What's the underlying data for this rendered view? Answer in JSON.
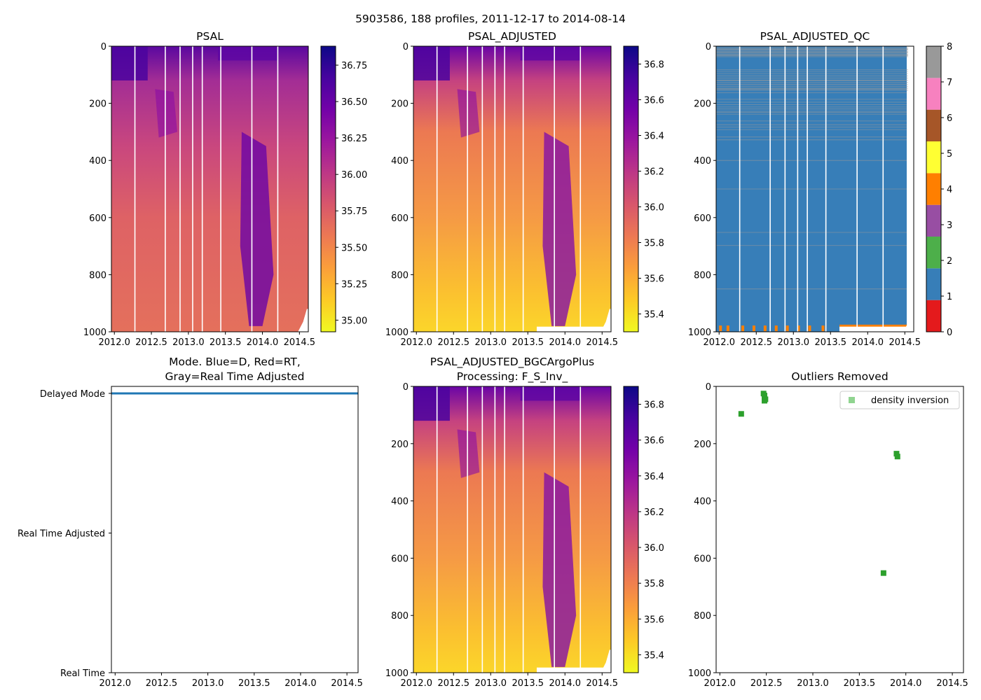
{
  "figure": {
    "suptitle": "5903586, 188 profiles, 2011-12-17 to 2014-08-14"
  },
  "colors": {
    "plasma": [
      "#0d0887",
      "#47039f",
      "#7301a8",
      "#9c179e",
      "#bd3786",
      "#d8576b",
      "#ed7953",
      "#fb9f3a",
      "#fdca26",
      "#f0f921"
    ],
    "qc": [
      "#e41a1c",
      "#377eb8",
      "#4daf4a",
      "#984ea3",
      "#ff7f00",
      "#ffff33",
      "#a65628",
      "#f781bf",
      "#999999"
    ],
    "mode_line": "#1f77b4",
    "outlier_marker": "#2ca02c",
    "outlier_legend": "#90d490"
  },
  "chart_data": [
    {
      "id": "psal",
      "type": "heatmap",
      "title": "PSAL",
      "x_ticks": [
        "2012.0",
        "2012.5",
        "2013.0",
        "2013.5",
        "2014.0",
        "2014.5"
      ],
      "x_tick_values": [
        2012.0,
        2012.5,
        2013.0,
        2013.5,
        2014.0,
        2014.5
      ],
      "xlim": [
        2011.96,
        2014.62
      ],
      "y_ticks": [
        "0",
        "200",
        "400",
        "600",
        "800",
        "1000"
      ],
      "y_tick_values": [
        0,
        200,
        400,
        600,
        800,
        1000
      ],
      "ylim": [
        1000,
        0
      ],
      "colorbar": {
        "ticks": [
          "35.00",
          "35.25",
          "35.50",
          "35.75",
          "36.00",
          "36.25",
          "36.50",
          "36.75"
        ],
        "tick_values": [
          35.0,
          35.25,
          35.5,
          35.75,
          36.0,
          36.25,
          36.5,
          36.75
        ],
        "range": [
          34.92,
          36.88
        ]
      }
    },
    {
      "id": "psal_adjusted",
      "type": "heatmap",
      "title": "PSAL_ADJUSTED",
      "x_ticks": [
        "2012.0",
        "2012.5",
        "2013.0",
        "2013.5",
        "2014.0",
        "2014.5"
      ],
      "x_tick_values": [
        2012.0,
        2012.5,
        2013.0,
        2013.5,
        2014.0,
        2014.5
      ],
      "xlim": [
        2011.96,
        2014.62
      ],
      "y_ticks": [
        "0",
        "200",
        "400",
        "600",
        "800",
        "1000"
      ],
      "y_tick_values": [
        0,
        200,
        400,
        600,
        800,
        1000
      ],
      "ylim": [
        1000,
        0
      ],
      "colorbar": {
        "ticks": [
          "35.4",
          "35.6",
          "35.8",
          "36.0",
          "36.2",
          "36.4",
          "36.6",
          "36.8"
        ],
        "tick_values": [
          35.4,
          35.6,
          35.8,
          36.0,
          36.2,
          36.4,
          36.6,
          36.8
        ],
        "range": [
          35.3,
          36.9
        ]
      }
    },
    {
      "id": "psal_adjusted_qc",
      "type": "heatmap",
      "title": "PSAL_ADJUSTED_QC",
      "x_ticks": [
        "2012.0",
        "2012.5",
        "2013.0",
        "2013.5",
        "2014.0",
        "2014.5"
      ],
      "x_tick_values": [
        2012.0,
        2012.5,
        2013.0,
        2013.5,
        2014.0,
        2014.5
      ],
      "xlim": [
        2011.96,
        2014.62
      ],
      "y_ticks": [
        "0",
        "200",
        "400",
        "600",
        "800",
        "1000"
      ],
      "y_tick_values": [
        0,
        200,
        400,
        600,
        800,
        1000
      ],
      "ylim": [
        1000,
        0
      ],
      "dominant_flag": 1,
      "colorbar": {
        "ticks": [
          "0",
          "1",
          "2",
          "3",
          "4",
          "5",
          "6",
          "7",
          "8"
        ],
        "tick_values": [
          0,
          1,
          2,
          3,
          4,
          5,
          6,
          7,
          8
        ],
        "range": [
          0,
          8
        ]
      }
    },
    {
      "id": "mode",
      "type": "line",
      "title": "Mode. Blue=D, Red=RT,",
      "title2": "Gray=Real Time Adjusted",
      "x_ticks": [
        "2012.0",
        "2012.5",
        "2013.0",
        "2013.5",
        "2014.0",
        "2014.5"
      ],
      "x_tick_values": [
        2012.0,
        2012.5,
        2013.0,
        2013.5,
        2014.0,
        2014.5
      ],
      "xlim": [
        2011.96,
        2014.62
      ],
      "y_ticks": [
        "Delayed Mode",
        "Real Time Adjusted",
        "Real Time"
      ],
      "y_tick_values": [
        2,
        1,
        0
      ],
      "ylim": [
        0,
        2.05
      ],
      "series": [
        {
          "name": "Delayed Mode",
          "x": [
            2011.96,
            2014.62
          ],
          "y": [
            2,
            2
          ]
        }
      ]
    },
    {
      "id": "psal_adjusted_bgc",
      "type": "heatmap",
      "title": "PSAL_ADJUSTED_BGCArgoPlus",
      "title2": "Processing: F_S_Inv_",
      "x_ticks": [
        "2012.0",
        "2012.5",
        "2013.0",
        "2013.5",
        "2014.0",
        "2014.5"
      ],
      "x_tick_values": [
        2012.0,
        2012.5,
        2013.0,
        2013.5,
        2014.0,
        2014.5
      ],
      "xlim": [
        2011.96,
        2014.62
      ],
      "y_ticks": [
        "0",
        "200",
        "400",
        "600",
        "800",
        "1000"
      ],
      "y_tick_values": [
        0,
        200,
        400,
        600,
        800,
        1000
      ],
      "ylim": [
        1000,
        0
      ],
      "colorbar": {
        "ticks": [
          "35.4",
          "35.6",
          "35.8",
          "36.0",
          "36.2",
          "36.4",
          "36.6",
          "36.8"
        ],
        "tick_values": [
          35.4,
          35.6,
          35.8,
          36.0,
          36.2,
          36.4,
          36.6,
          36.8
        ],
        "range": [
          35.3,
          36.9
        ]
      }
    },
    {
      "id": "outliers",
      "type": "scatter",
      "title": "Outliers Removed",
      "x_ticks": [
        "2012.0",
        "2012.5",
        "2013.0",
        "2013.5",
        "2014.0",
        "2014.5"
      ],
      "x_tick_values": [
        2012.0,
        2012.5,
        2013.0,
        2013.5,
        2014.0,
        2014.5
      ],
      "xlim": [
        2011.96,
        2014.62
      ],
      "y_ticks": [
        "0",
        "200",
        "400",
        "600",
        "800",
        "1000"
      ],
      "y_tick_values": [
        0,
        200,
        400,
        600,
        800,
        1000
      ],
      "ylim": [
        1000,
        0
      ],
      "legend": {
        "label": "density inversion",
        "loc": "upper right"
      },
      "series": [
        {
          "name": "density inversion",
          "x": [
            2012.23,
            2012.47,
            2012.48,
            2012.48,
            2012.49,
            2012.48,
            2013.76,
            2013.9,
            2013.91
          ],
          "y": [
            96,
            25,
            32,
            38,
            45,
            50,
            652,
            235,
            245
          ]
        }
      ]
    }
  ]
}
